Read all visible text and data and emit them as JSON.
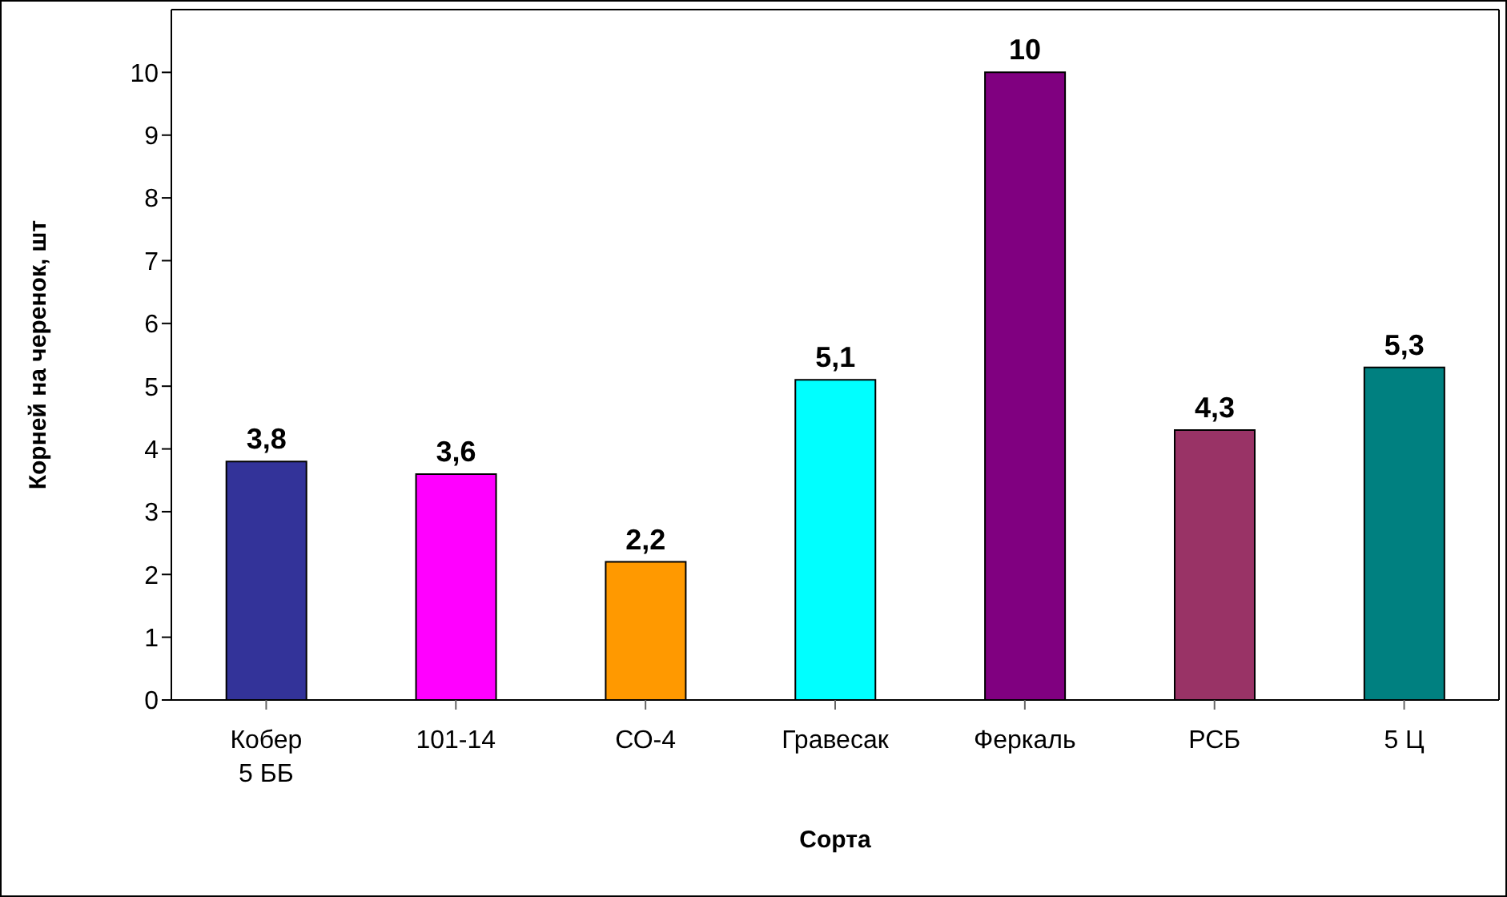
{
  "chart_data": {
    "type": "bar",
    "xlabel": "Сорта",
    "ylabel": "Корней на черенок, шт",
    "categories": [
      "Кобер 5 ББ",
      "101-14",
      "СО-4",
      "Гравесак",
      "Феркаль",
      "РСБ",
      "5 Ц"
    ],
    "values": [
      3.8,
      3.6,
      2.2,
      5.1,
      10,
      4.3,
      5.3
    ],
    "value_labels": [
      "3,8",
      "3,6",
      "2,2",
      "5,1",
      "10",
      "4,3",
      "5,3"
    ],
    "colors": [
      "#333399",
      "#ff00ff",
      "#ff9900",
      "#00ffff",
      "#800080",
      "#993366",
      "#008080"
    ],
    "ylim": [
      0,
      11
    ],
    "yticks": [
      0,
      1,
      2,
      3,
      4,
      5,
      6,
      7,
      8,
      9,
      10
    ]
  }
}
